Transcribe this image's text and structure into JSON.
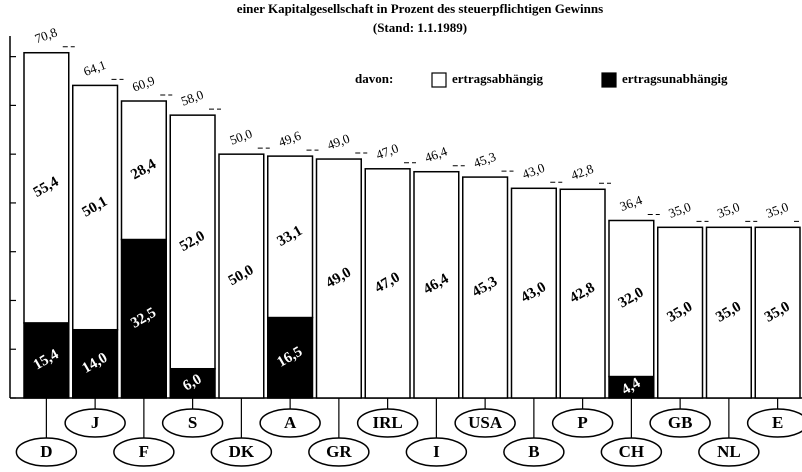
{
  "chart_data": {
    "type": "stacked-bar",
    "title": "einer Kapitalgesellschaft  in Prozent des steuerpflichtigen Gewinns",
    "subtitle": "(Stand: 1.1.1989)",
    "legend_prefix": "davon:",
    "categories": [
      "D",
      "J",
      "F",
      "S",
      "DK",
      "A",
      "GR",
      "IRL",
      "I",
      "USA",
      "B",
      "P",
      "CH",
      "GB",
      "NL",
      "E"
    ],
    "series": [
      {
        "name": "ertragsunabhängig",
        "color": "#000000",
        "values": [
          15.4,
          14.0,
          32.5,
          6.0,
          null,
          16.5,
          null,
          null,
          null,
          null,
          null,
          null,
          4.4,
          null,
          null,
          null
        ],
        "value_labels": [
          "15,4",
          "14,0",
          "32,5",
          "6,0",
          null,
          "16,5",
          null,
          null,
          null,
          null,
          null,
          null,
          "4,4",
          null,
          null,
          null
        ]
      },
      {
        "name": "ertragsabhängig",
        "color": "#ffffff",
        "values": [
          55.4,
          50.1,
          28.4,
          52.0,
          50.0,
          33.1,
          49.0,
          47.0,
          46.4,
          45.3,
          43.0,
          42.8,
          32.0,
          35.0,
          35.0,
          35.0
        ],
        "value_labels": [
          "55,4",
          "50,1",
          "28,4",
          "52,0",
          "50,0",
          "33,1",
          "49,0",
          "47,0",
          "46,4",
          "45,3",
          "43,0",
          "42,8",
          "32,0",
          "35,0",
          "35,0",
          "35,0"
        ]
      }
    ],
    "totals": {
      "values": [
        70.8,
        64.1,
        60.9,
        58.0,
        50.0,
        49.6,
        49.0,
        47.0,
        46.4,
        45.3,
        43.0,
        42.8,
        36.4,
        35.0,
        35.0,
        35.0
      ],
      "value_labels": [
        "70,8",
        "64,1",
        "60,9",
        "58,0",
        "50,0",
        "49,6",
        "49,0",
        "47,0",
        "46,4",
        "45,3",
        "43,0",
        "42,8",
        "36,4",
        "35,0",
        "35,0",
        "35,0"
      ]
    },
    "ylim": [
      0,
      73
    ],
    "yticks": [
      0,
      10,
      20,
      30,
      40,
      50,
      60,
      70
    ]
  }
}
